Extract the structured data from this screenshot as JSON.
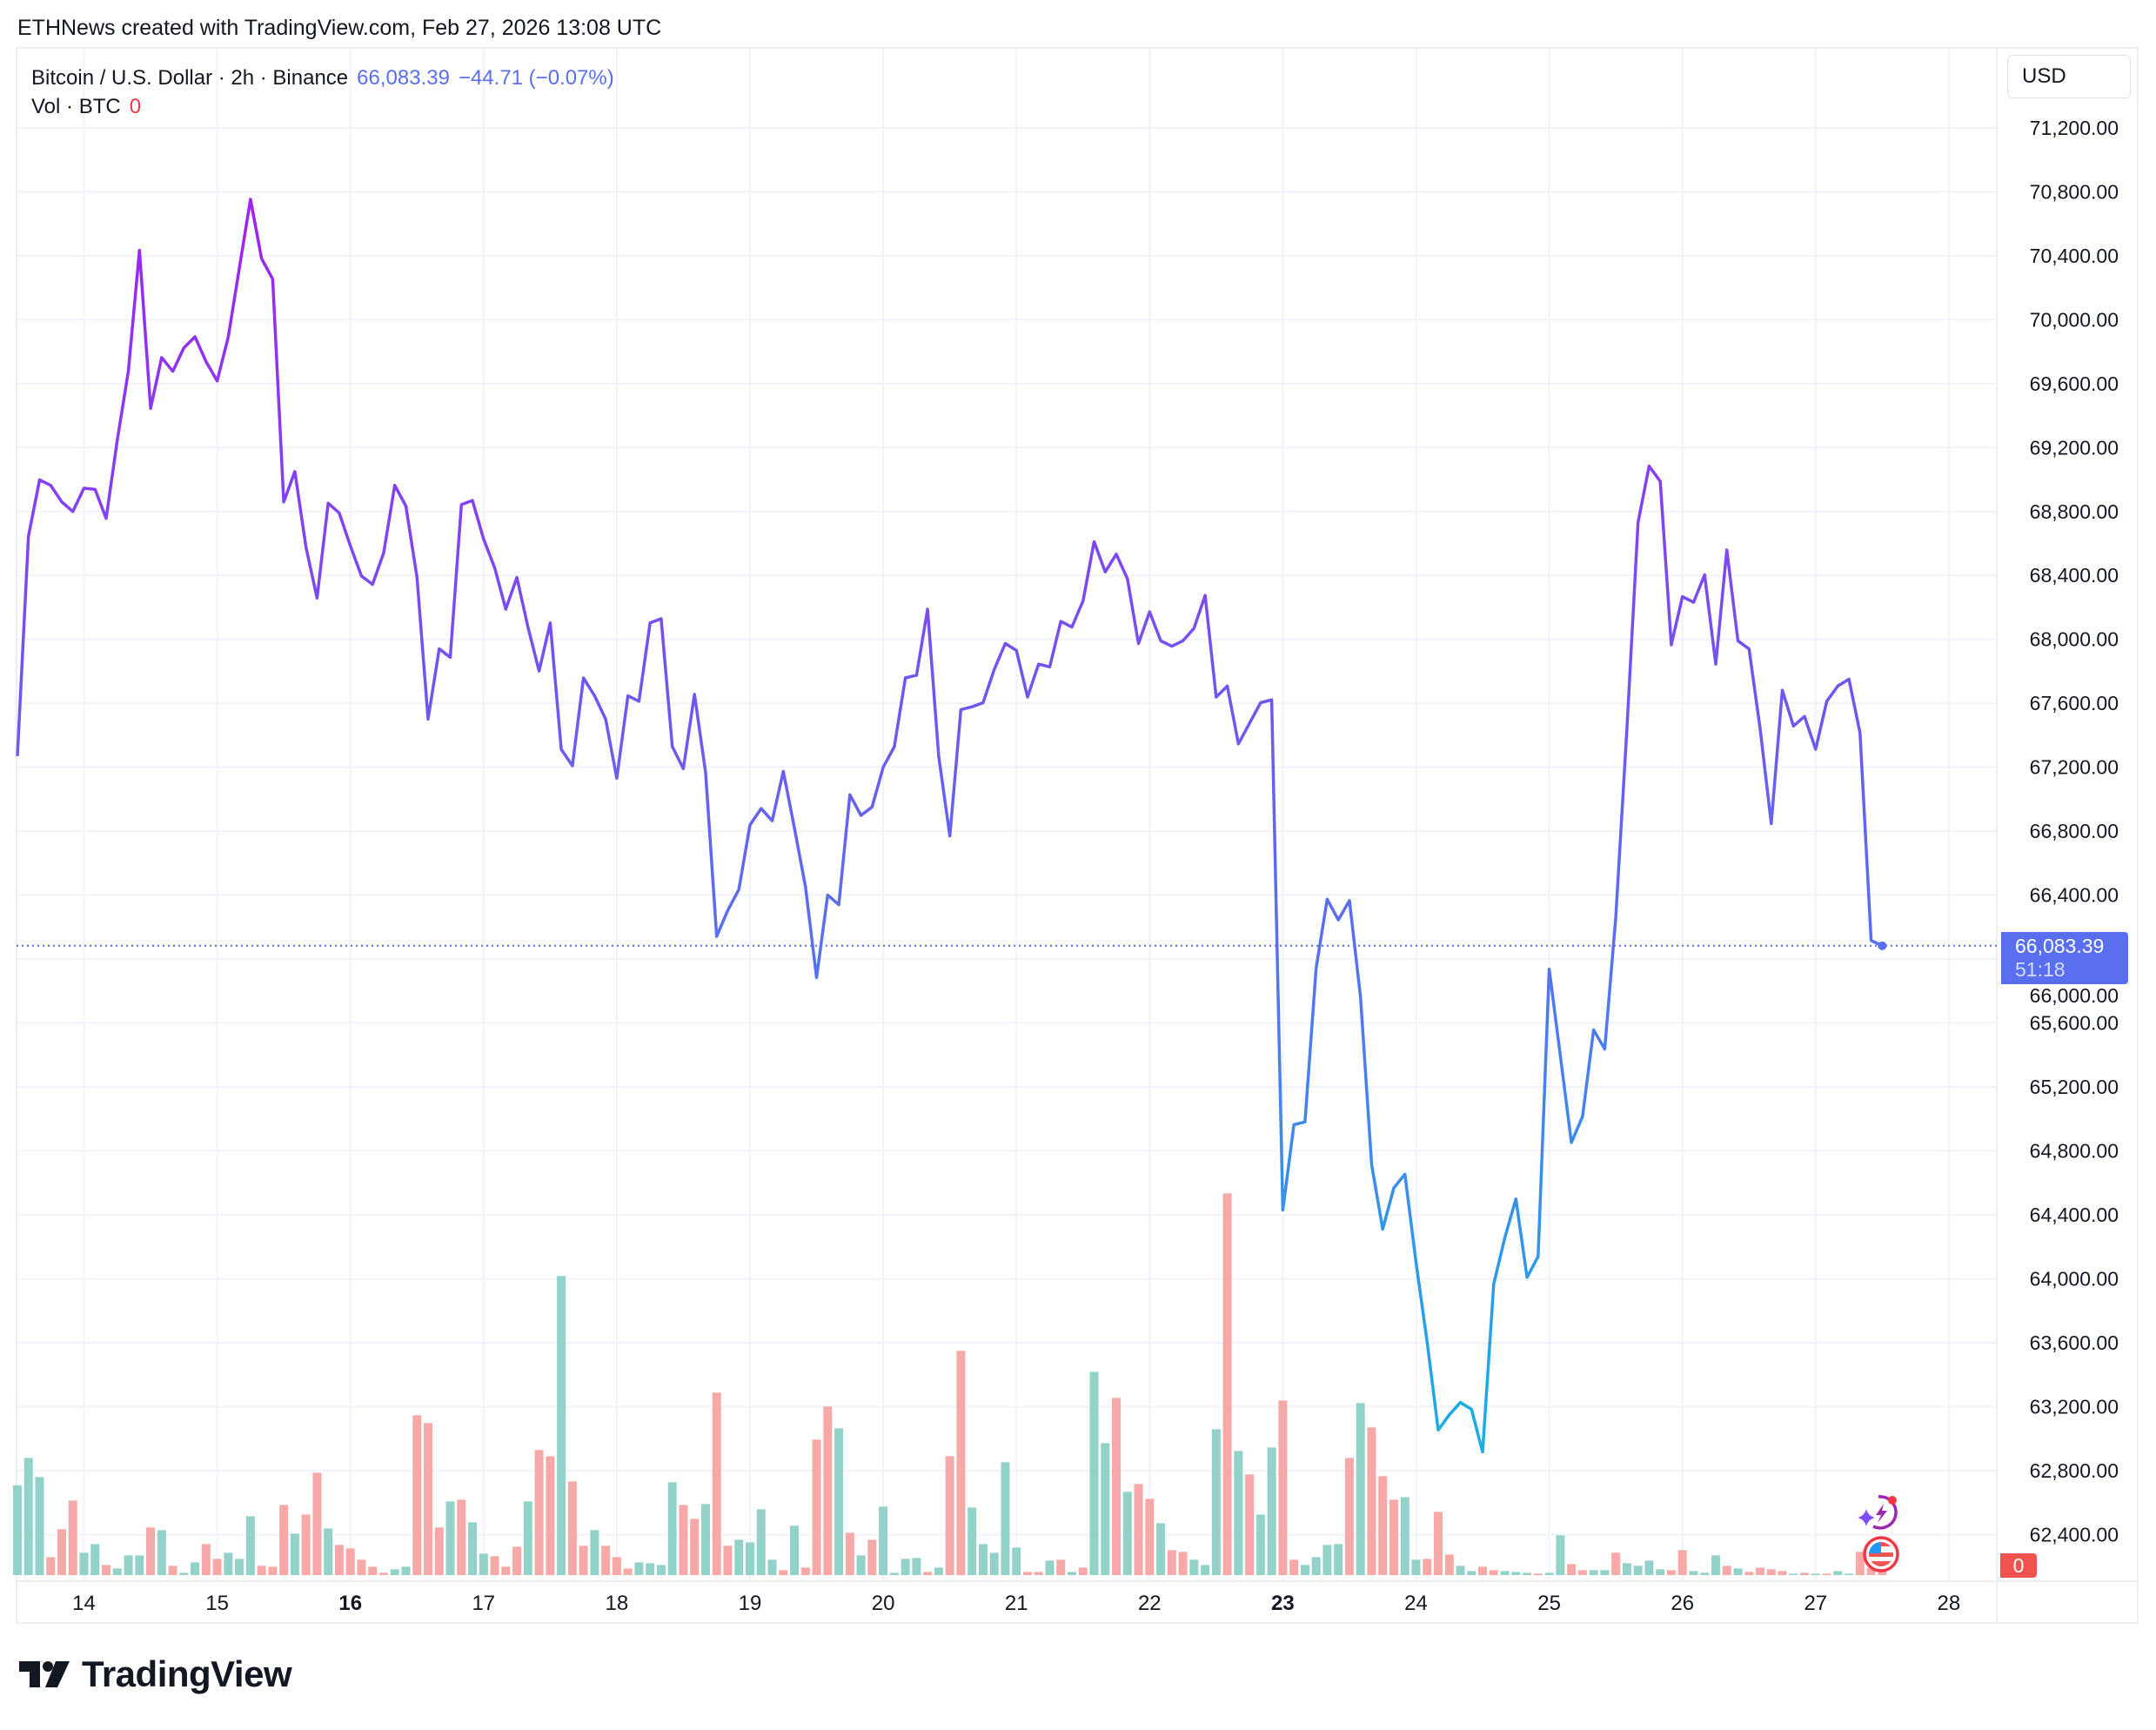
{
  "header": {
    "watermark": "ETHNews created with TradingView.com, Feb 27, 2026 13:08 UTC"
  },
  "legend": {
    "symbol": "Bitcoin / U.S. Dollar · 2h · Binance",
    "last_price": "66,083.39",
    "change": "−44.71 (−0.07%)",
    "volume_label": "Vol · BTC",
    "volume_value": "0"
  },
  "price_axis": {
    "currency": "USD",
    "current_price_label": "66,083.39",
    "countdown": "51:18",
    "volume_tag": "0"
  },
  "brand": {
    "logo_text": "TradingView"
  },
  "colors": {
    "line_top": "#a21ff0",
    "line_mid": "#5a6ff0",
    "line_bottom": "#18aee6",
    "vol_up": "#92d2c9",
    "vol_down": "#f6a9a7",
    "grid": "#f0f3fa",
    "accent": "#5a6ff0",
    "down_tag": "#f05350"
  },
  "icons": [
    "ai-spark-lightning-icon",
    "us-flag-event-icon"
  ],
  "chart_data": {
    "type": "line",
    "title": "",
    "xlabel": "",
    "ylabel": "",
    "ylim": [
      62000,
      71600
    ],
    "grid": true,
    "y_ticks": [
      "71,200.00",
      "70,800.00",
      "70,400.00",
      "70,000.00",
      "69,600.00",
      "69,200.00",
      "68,800.00",
      "68,400.00",
      "68,000.00",
      "67,600.00",
      "67,200.00",
      "66,800.00",
      "66,400.00",
      "66,000.00",
      "65,600.00",
      "65,200.00",
      "64,800.00",
      "64,400.00",
      "64,000.00",
      "63,600.00",
      "63,200.00",
      "62,800.00",
      "62,400.00"
    ],
    "x_ticks": [
      {
        "day": 14,
        "label": "14",
        "bold": false
      },
      {
        "day": 15,
        "label": "15",
        "bold": false
      },
      {
        "day": 16,
        "label": "16",
        "bold": true
      },
      {
        "day": 17,
        "label": "17",
        "bold": false
      },
      {
        "day": 18,
        "label": "18",
        "bold": false
      },
      {
        "day": 19,
        "label": "19",
        "bold": false
      },
      {
        "day": 20,
        "label": "20",
        "bold": false
      },
      {
        "day": 21,
        "label": "21",
        "bold": false
      },
      {
        "day": 22,
        "label": "22",
        "bold": false
      },
      {
        "day": 23,
        "label": "23",
        "bold": true
      },
      {
        "day": 24,
        "label": "24",
        "bold": false
      },
      {
        "day": 25,
        "label": "25",
        "bold": false
      },
      {
        "day": 26,
        "label": "26",
        "bold": false
      },
      {
        "day": 27,
        "label": "27",
        "bold": false
      },
      {
        "day": 28,
        "label": "28",
        "bold": false
      }
    ],
    "x": [
      "02-13 12:00",
      "02-13 14:00",
      "02-13 16:00",
      "02-13 18:00",
      "02-13 20:00",
      "02-13 22:00",
      "02-14 00:00",
      "02-14 02:00",
      "02-14 04:00",
      "02-14 06:00",
      "02-14 08:00",
      "02-14 10:00",
      "02-14 12:00",
      "02-14 14:00",
      "02-14 16:00",
      "02-14 18:00",
      "02-14 20:00",
      "02-14 22:00",
      "02-15 00:00",
      "02-15 02:00",
      "02-15 04:00",
      "02-15 06:00",
      "02-15 08:00",
      "02-15 10:00",
      "02-15 12:00",
      "02-15 14:00",
      "02-15 16:00",
      "02-15 18:00",
      "02-15 20:00",
      "02-15 22:00",
      "02-16 00:00",
      "02-16 02:00",
      "02-16 04:00",
      "02-16 06:00",
      "02-16 08:00",
      "02-16 10:00",
      "02-16 12:00",
      "02-16 14:00",
      "02-16 16:00",
      "02-16 18:00",
      "02-16 20:00",
      "02-16 22:00",
      "02-17 00:00",
      "02-17 02:00",
      "02-17 04:00",
      "02-17 06:00",
      "02-17 08:00",
      "02-17 10:00",
      "02-17 12:00",
      "02-17 14:00",
      "02-17 16:00",
      "02-17 18:00",
      "02-17 20:00",
      "02-17 22:00",
      "02-18 00:00",
      "02-18 02:00",
      "02-18 04:00",
      "02-18 06:00",
      "02-18 08:00",
      "02-18 10:00",
      "02-18 12:00",
      "02-18 14:00",
      "02-18 16:00",
      "02-18 18:00",
      "02-18 20:00",
      "02-18 22:00",
      "02-19 00:00",
      "02-19 02:00",
      "02-19 04:00",
      "02-19 06:00",
      "02-19 08:00",
      "02-19 10:00",
      "02-19 12:00",
      "02-19 14:00",
      "02-19 16:00",
      "02-19 18:00",
      "02-19 20:00",
      "02-19 22:00",
      "02-20 00:00",
      "02-20 02:00",
      "02-20 04:00",
      "02-20 06:00",
      "02-20 08:00",
      "02-20 10:00",
      "02-20 12:00",
      "02-20 14:00",
      "02-20 16:00",
      "02-20 18:00",
      "02-20 20:00",
      "02-20 22:00",
      "02-21 00:00",
      "02-21 02:00",
      "02-21 04:00",
      "02-21 06:00",
      "02-21 08:00",
      "02-21 10:00",
      "02-21 12:00",
      "02-21 14:00",
      "02-21 16:00",
      "02-21 18:00",
      "02-21 20:00",
      "02-21 22:00",
      "02-22 00:00",
      "02-22 02:00",
      "02-22 04:00",
      "02-22 06:00",
      "02-22 08:00",
      "02-22 10:00",
      "02-22 12:00",
      "02-22 14:00",
      "02-22 16:00",
      "02-22 18:00",
      "02-22 20:00",
      "02-22 22:00",
      "02-23 00:00",
      "02-23 02:00",
      "02-23 04:00",
      "02-23 06:00",
      "02-23 08:00",
      "02-23 10:00",
      "02-23 12:00",
      "02-23 14:00",
      "02-23 16:00",
      "02-23 18:00",
      "02-23 20:00",
      "02-23 22:00",
      "02-24 00:00",
      "02-24 02:00",
      "02-24 04:00",
      "02-24 06:00",
      "02-24 08:00",
      "02-24 10:00",
      "02-24 12:00",
      "02-24 14:00",
      "02-24 16:00",
      "02-24 18:00",
      "02-24 20:00",
      "02-24 22:00",
      "02-25 00:00",
      "02-25 02:00",
      "02-25 04:00",
      "02-25 06:00",
      "02-25 08:00",
      "02-25 10:00",
      "02-25 12:00",
      "02-25 14:00",
      "02-25 16:00",
      "02-25 18:00",
      "02-25 20:00",
      "02-25 22:00",
      "02-26 00:00",
      "02-26 02:00",
      "02-26 04:00",
      "02-26 06:00",
      "02-26 08:00",
      "02-26 10:00",
      "02-26 12:00",
      "02-26 14:00",
      "02-26 16:00",
      "02-26 18:00",
      "02-26 20:00",
      "02-26 22:00",
      "02-27 00:00",
      "02-27 02:00",
      "02-27 04:00",
      "02-27 06:00",
      "02-27 08:00",
      "02-27 10:00",
      "02-27 12:00"
    ],
    "series": [
      {
        "values": [
          67270,
          68645,
          68998,
          68964,
          68860,
          68800,
          68946,
          68938,
          68757,
          69247,
          69677,
          70434,
          69445,
          69763,
          69677,
          69824,
          69893,
          69738,
          69617,
          69893,
          70323,
          70753,
          70383,
          70254,
          68860,
          69050,
          68576,
          68258,
          68852,
          68791,
          68585,
          68396,
          68344,
          68542,
          68964,
          68834,
          68387,
          67501,
          67940,
          67888,
          68843,
          68869,
          68628,
          68447,
          68189,
          68387,
          68077,
          67802,
          68103,
          67312,
          67209,
          67759,
          67647,
          67501,
          67131,
          67647,
          67613,
          68103,
          68129,
          67329,
          67191,
          67656,
          67166,
          66142,
          66305,
          66435,
          66839,
          66942,
          66865,
          67174,
          66822,
          66452,
          65884,
          66400,
          66340,
          67028,
          66899,
          66951,
          67200,
          67329,
          67759,
          67776,
          68189,
          67269,
          66770,
          67561,
          67578,
          67604,
          67811,
          67974,
          67931,
          67639,
          67845,
          67828,
          68112,
          68077,
          68241,
          68611,
          68422,
          68533,
          68379,
          67974,
          68172,
          67991,
          67957,
          67991,
          68069,
          68275,
          67639,
          67708,
          67346,
          67475,
          67604,
          67622,
          64430,
          64964,
          64981,
          65944,
          66374,
          66245,
          66366,
          65764,
          64714,
          64310,
          64568,
          64654,
          64103,
          63604,
          63054,
          63149,
          63226,
          63183,
          62916,
          63966,
          64258,
          64499,
          64009,
          64138,
          65936,
          65394,
          64852,
          65015,
          65557,
          65437,
          66262,
          67441,
          68731,
          69084,
          68989,
          67966,
          68267,
          68232,
          68404,
          67845,
          68559,
          67991,
          67940,
          67441,
          66847,
          67682,
          67458,
          67518,
          67312,
          67613,
          67708,
          67751,
          67415,
          66116,
          66083
        ]
      }
    ],
    "current_price": 66083.39,
    "volume": [
      309,
      404,
      338,
      62,
      158,
      257,
      77,
      107,
      35,
      23,
      68,
      68,
      164,
      155,
      32,
      8,
      44,
      107,
      56,
      77,
      56,
      203,
      32,
      29,
      242,
      143,
      209,
      353,
      161,
      104,
      92,
      53,
      29,
      8,
      20,
      29,
      551,
      524,
      164,
      254,
      260,
      182,
      74,
      65,
      29,
      98,
      254,
      431,
      410,
      1031,
      323,
      101,
      155,
      101,
      62,
      23,
      44,
      41,
      35,
      320,
      242,
      194,
      245,
      629,
      101,
      122,
      113,
      227,
      53,
      17,
      170,
      26,
      467,
      581,
      506,
      146,
      68,
      122,
      236,
      8,
      56,
      59,
      11,
      26,
      410,
      773,
      233,
      107,
      77,
      389,
      95,
      11,
      11,
      50,
      53,
      11,
      26,
      701,
      455,
      611,
      287,
      314,
      263,
      179,
      86,
      80,
      53,
      35,
      503,
      1316,
      428,
      347,
      209,
      440,
      602,
      53,
      35,
      62,
      104,
      107,
      404,
      593,
      509,
      341,
      260,
      269,
      53,
      56,
      218,
      71,
      32,
      14,
      29,
      17,
      14,
      11,
      8,
      5,
      8,
      137,
      38,
      17,
      17,
      17,
      77,
      41,
      32,
      50,
      20,
      17,
      86,
      14,
      8,
      68,
      32,
      23,
      11,
      26,
      20,
      14,
      5,
      8,
      5,
      5,
      14,
      5,
      80,
      26,
      14
    ],
    "volume_direction": "uuuddduuduuududuudduuudddudduddddduudddud uuddduddud duddduuuud dudduuuudu dddududuuu ududduuuuu ddududuudu ddudduuudu duudduuuu duddduuddd uudduuuduu dduuduuuud duuududddd ududuudddd"
  }
}
